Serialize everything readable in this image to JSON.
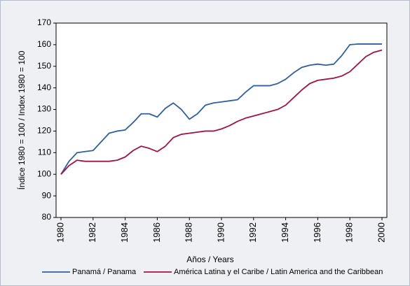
{
  "chart_data": {
    "type": "line",
    "y_label": "Índice 1980 = 100 / Index 1980 = 100",
    "x_label": "Años / Years",
    "x": [
      1980,
      1980.5,
      1981,
      1981.5,
      1982,
      1982.5,
      1983,
      1983.5,
      1984,
      1984.5,
      1985,
      1985.5,
      1986,
      1986.5,
      1987,
      1987.5,
      1988,
      1988.5,
      1989,
      1989.5,
      1990,
      1990.5,
      1991,
      1991.5,
      1992,
      1992.5,
      1993,
      1993.5,
      1994,
      1994.5,
      1995,
      1995.5,
      1996,
      1996.5,
      1997,
      1997.5,
      1998,
      1998.5,
      1999,
      1999.5,
      2000
    ],
    "series": [
      {
        "name": "Panamá / Panama",
        "color": "#2f5f9e",
        "values": [
          100,
          106,
          110,
          110.5,
          111,
          115,
          119,
          120,
          120.5,
          124,
          128,
          128,
          126.5,
          130.5,
          133,
          130,
          125.5,
          128,
          132,
          133,
          133.5,
          134,
          134.5,
          138,
          141,
          141,
          141,
          142,
          144,
          147,
          149.5,
          150.5,
          151,
          150.5,
          151,
          155,
          160,
          160.3,
          160.3,
          160.3,
          160.3
        ]
      },
      {
        "name": "América Latina y el Caribe / Latin America and the Caribbean",
        "color": "#a0124a",
        "values": [
          100,
          104,
          106.5,
          106,
          106,
          106,
          106,
          106.5,
          108,
          111,
          113,
          112,
          110.5,
          113,
          117,
          118.5,
          119,
          119.5,
          120,
          120,
          121,
          122.5,
          124.5,
          126,
          127,
          128,
          129,
          130,
          132,
          135.5,
          139,
          142,
          143.5,
          144,
          144.5,
          145.5,
          147.5,
          151,
          154.5,
          156.5,
          157.5
        ]
      }
    ],
    "xlim": [
      1980,
      2000
    ],
    "xticks": [
      1980,
      1982,
      1984,
      1986,
      1988,
      1990,
      1992,
      1994,
      1996,
      1998,
      2000
    ],
    "ylim": [
      80,
      170
    ],
    "yticks": [
      80,
      90,
      100,
      110,
      120,
      130,
      140,
      150,
      160,
      170
    ],
    "legend": "bottom"
  }
}
